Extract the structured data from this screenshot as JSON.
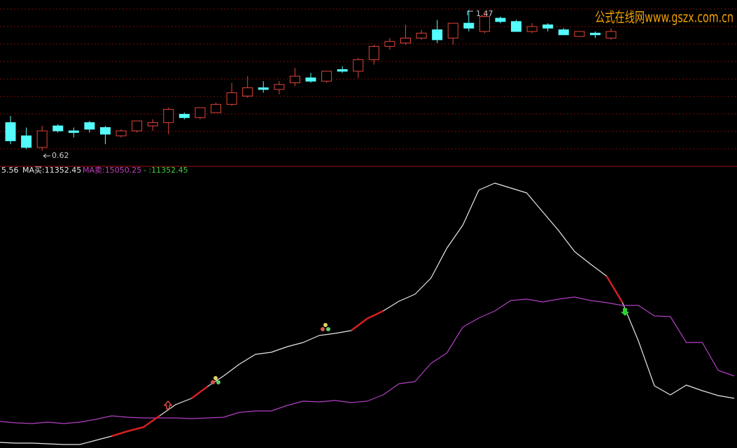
{
  "chart_data": [
    {
      "type": "candlestick",
      "open": [
        0.79,
        0.71,
        0.64,
        0.77,
        0.74,
        0.79,
        0.76,
        0.71,
        0.74,
        0.77,
        0.79,
        0.84,
        0.82,
        0.85,
        0.9,
        0.95,
        1.0,
        0.99,
        1.03,
        1.06,
        1.04,
        1.11,
        1.1,
        1.17,
        1.25,
        1.27,
        1.3,
        1.35,
        1.3,
        1.39,
        1.34,
        1.42,
        1.4,
        1.34,
        1.38,
        1.35,
        1.31,
        1.33,
        1.3
      ],
      "high": [
        0.83,
        0.76,
        0.77,
        0.78,
        0.76,
        0.8,
        0.77,
        0.75,
        0.8,
        0.81,
        0.88,
        0.85,
        0.88,
        0.91,
        1.03,
        1.07,
        1.04,
        1.04,
        1.12,
        1.09,
        1.1,
        1.13,
        1.18,
        1.26,
        1.3,
        1.38,
        1.35,
        1.41,
        1.39,
        1.47,
        1.46,
        1.43,
        1.41,
        1.39,
        1.39,
        1.36,
        1.34,
        1.34,
        1.36
      ],
      "low": [
        0.66,
        0.63,
        0.62,
        0.73,
        0.7,
        0.73,
        0.66,
        0.7,
        0.73,
        0.74,
        0.72,
        0.81,
        0.81,
        0.85,
        0.89,
        0.94,
        0.97,
        0.96,
        1.01,
        1.03,
        1.03,
        1.09,
        1.06,
        1.14,
        1.23,
        1.26,
        1.29,
        1.27,
        1.26,
        1.34,
        1.33,
        1.39,
        1.34,
        1.33,
        1.34,
        1.32,
        1.31,
        1.3,
        1.29
      ],
      "close": [
        0.68,
        0.64,
        0.74,
        0.74,
        0.73,
        0.75,
        0.72,
        0.74,
        0.8,
        0.79,
        0.87,
        0.82,
        0.88,
        0.9,
        0.97,
        1.0,
        0.99,
        1.02,
        1.07,
        1.04,
        1.1,
        1.1,
        1.17,
        1.25,
        1.28,
        1.3,
        1.33,
        1.29,
        1.39,
        1.36,
        1.43,
        1.4,
        1.34,
        1.37,
        1.36,
        1.32,
        1.34,
        1.32,
        1.34
      ],
      "up_color": "#e0453a",
      "down_color": "#54fcfc",
      "ylim": [
        0.53,
        1.53
      ],
      "watermark": "公式在线网www.gszx.com.cn"
    },
    {
      "type": "line",
      "header_texts": [
        "5.56",
        "-  :11352.45"
      ],
      "ylim": [
        3600,
        48340
      ],
      "series": [
        {
          "name": "MA买",
          "value_label": ":11352.45",
          "color": "#e8e8e8",
          "values": [
            4062,
            3947,
            3947,
            3831,
            3716,
            3716,
            4409,
            5103,
            5912,
            6606,
            8455,
            10305,
            11345,
            13310,
            15044,
            17010,
            18628,
            18975,
            19900,
            20593,
            21749,
            22096,
            22558,
            24524,
            25795,
            27414,
            28570,
            31228,
            36199,
            40014,
            45794,
            46950,
            46141,
            45332,
            42210,
            39089,
            35621,
            33540,
            31575,
            27182,
            20824,
            13426,
            11923,
            13542,
            12617,
            11808,
            11352.45
          ]
        },
        {
          "name": "MA卖",
          "value_label": ":15050.25",
          "color": "#b040c0",
          "values": [
            7530,
            7299,
            7184,
            7415,
            7184,
            7415,
            7877,
            8455,
            8224,
            8108,
            8108,
            8108,
            7993,
            8108,
            8224,
            9033,
            9264,
            9264,
            10189,
            10883,
            10767,
            10998,
            10652,
            10883,
            11923,
            13773,
            14120,
            17125,
            18859,
            23136,
            24639,
            25795,
            27529,
            27760,
            27298,
            27760,
            28107,
            27529,
            27182,
            26720,
            26720,
            24986,
            24870,
            20593,
            20593,
            15969,
            15050.25
          ]
        },
        {
          "color": "#d42020",
          "values": [
            null,
            null,
            null,
            null,
            null,
            null,
            null,
            5103,
            5912,
            6606,
            8455,
            null,
            11345,
            13310,
            null,
            null,
            null,
            null,
            null,
            null,
            null,
            null,
            22558,
            24524,
            25795,
            null,
            null,
            null,
            null,
            null,
            null,
            null,
            null,
            null,
            null,
            null,
            null,
            null,
            31575,
            27182,
            null,
            null,
            null,
            null,
            null,
            null,
            null
          ]
        }
      ]
    }
  ]
}
